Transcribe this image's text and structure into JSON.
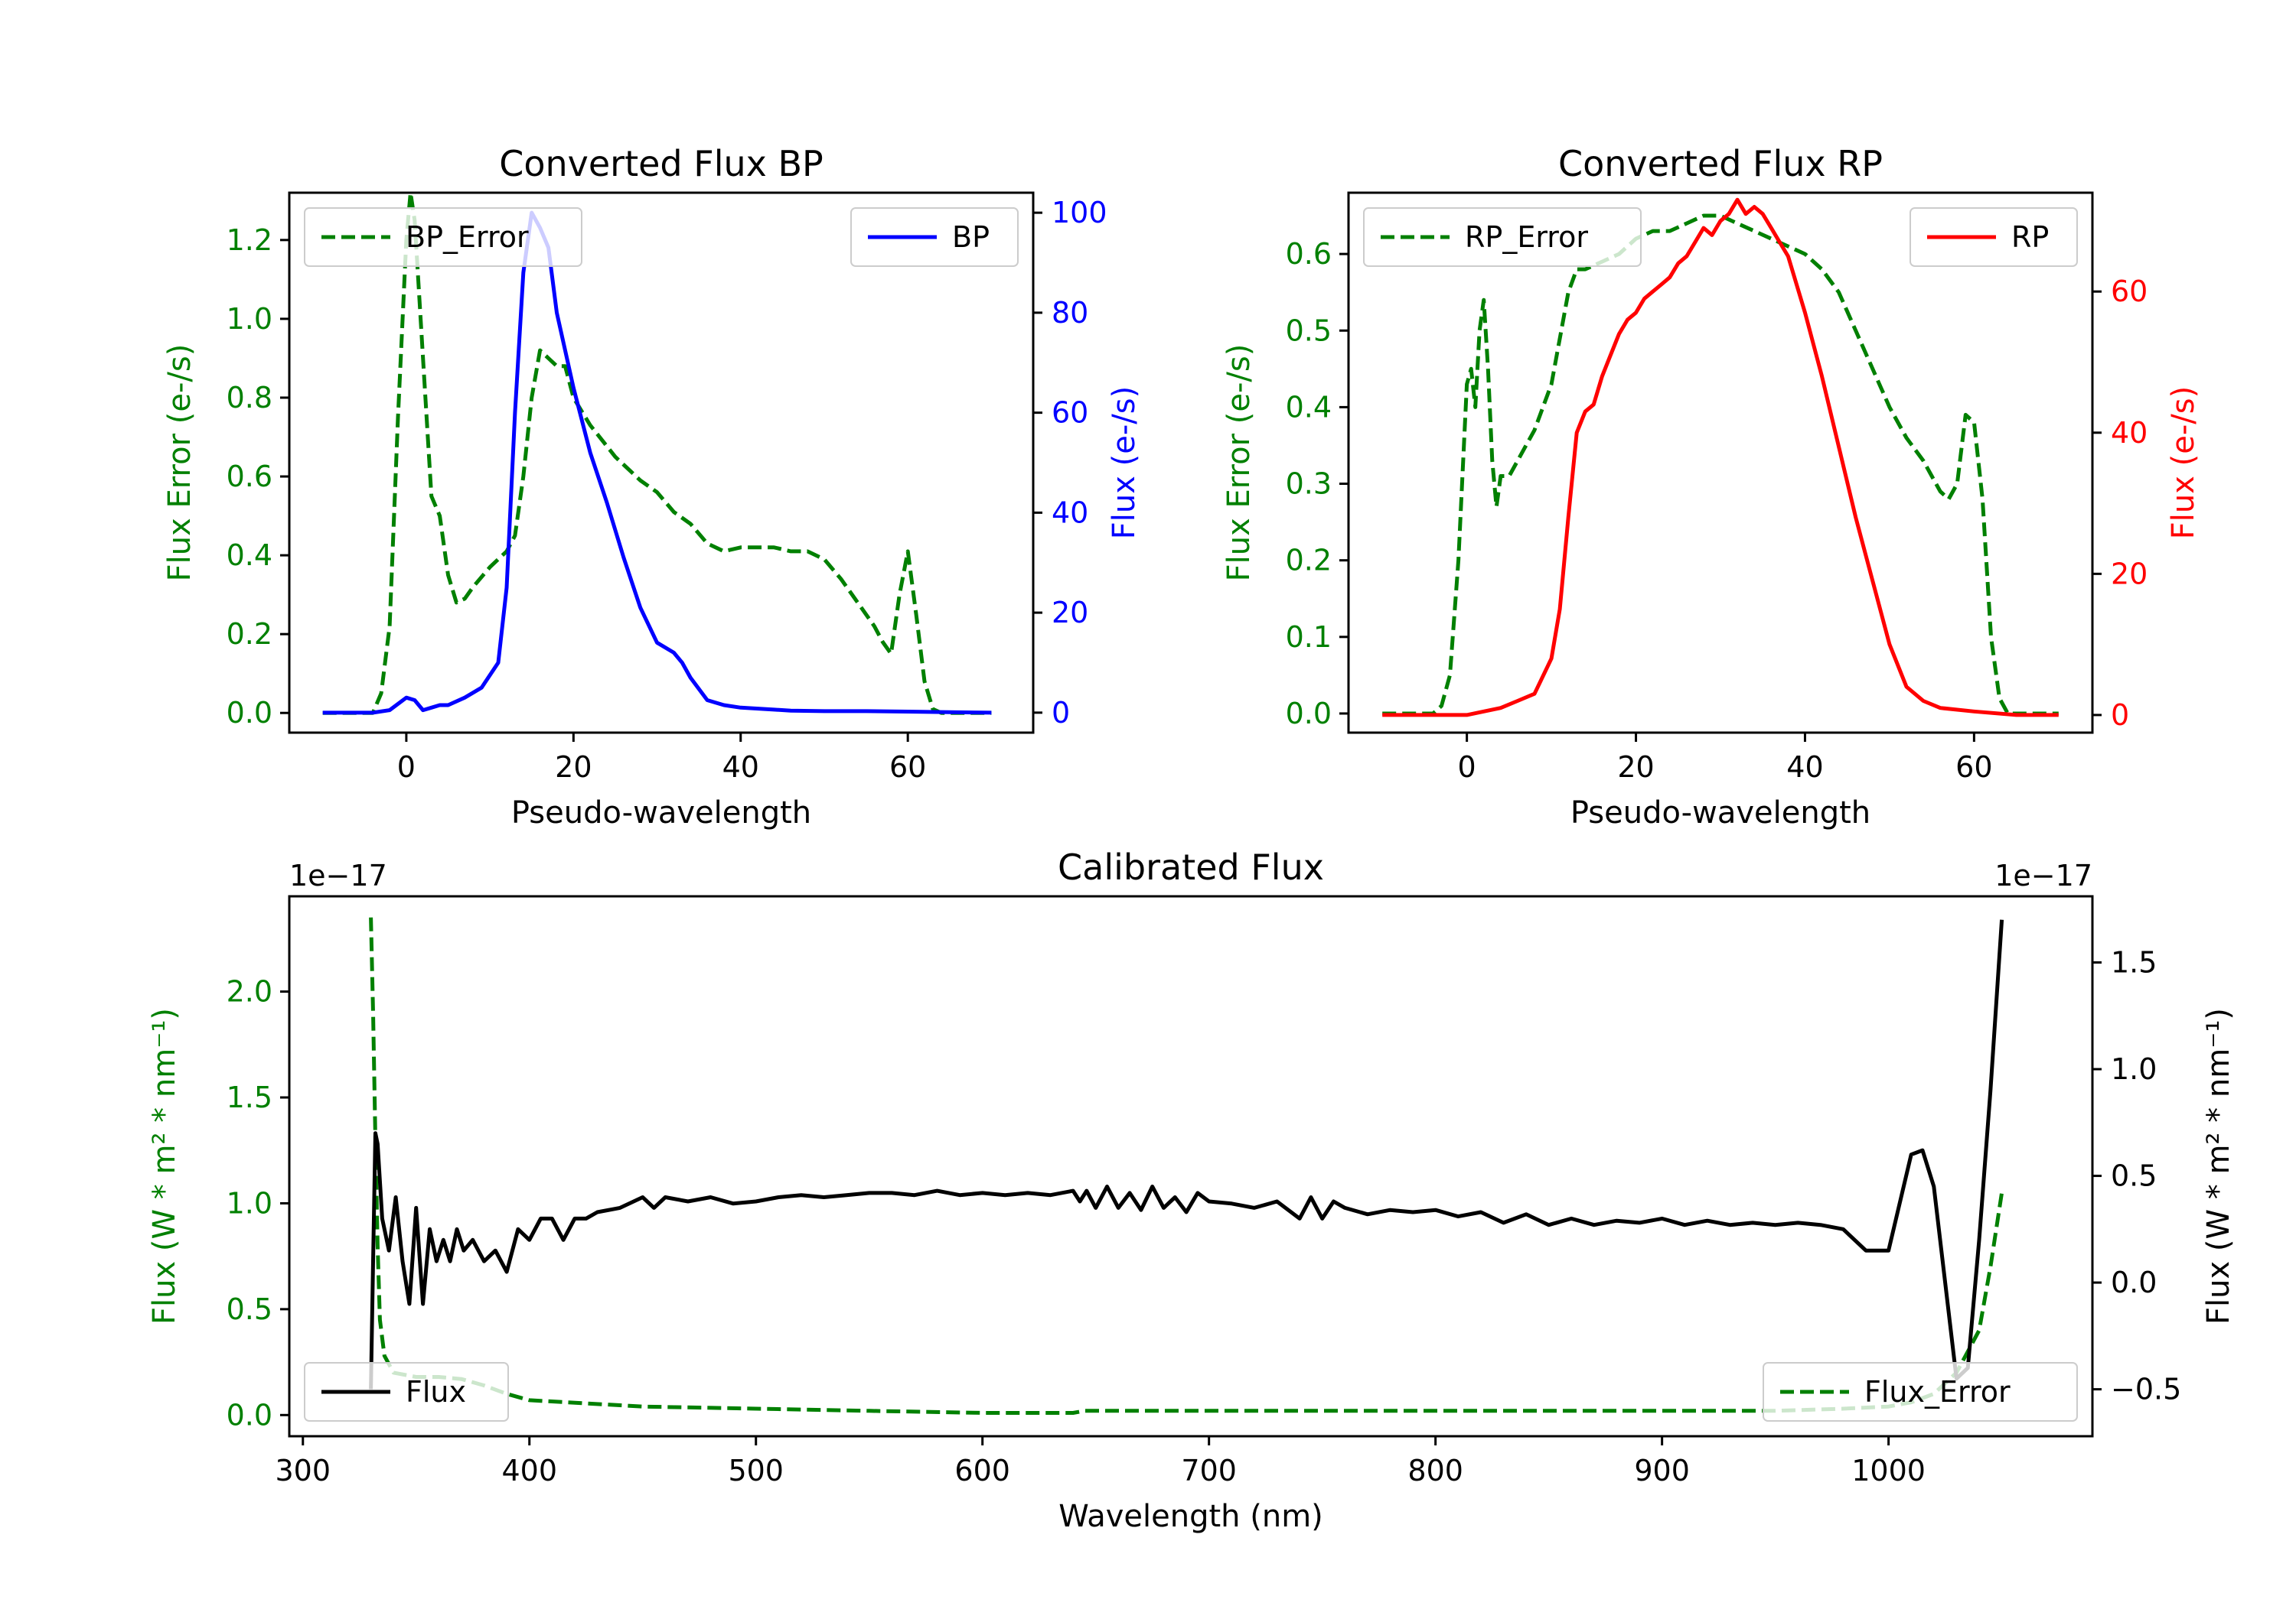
{
  "chart_data": [
    {
      "id": "bp",
      "type": "line",
      "title": "Converted Flux BP",
      "xlabel": "Pseudo-wavelength",
      "xlim": [
        -14,
        75
      ],
      "xticks": [
        0,
        20,
        40,
        60
      ],
      "left_axis": {
        "label": "Flux Error (e-/s)",
        "color": "#008000",
        "ylim": [
          -0.05,
          1.32
        ],
        "ticks": [
          0.0,
          0.2,
          0.4,
          0.6,
          0.8,
          1.0,
          1.2
        ],
        "tick_labels": [
          "0.0",
          "0.2",
          "0.4",
          "0.6",
          "0.8",
          "1.0",
          "1.2"
        ]
      },
      "right_axis": {
        "label": "Flux (e-/s)",
        "color": "#0000ff",
        "ylim": [
          -4,
          104
        ],
        "ticks": [
          0,
          20,
          40,
          60,
          80,
          100
        ],
        "tick_labels": [
          "0",
          "20",
          "40",
          "60",
          "80",
          "100"
        ]
      },
      "series": [
        {
          "name": "BP_Error",
          "axis": "left",
          "color": "#008000",
          "dashed": true,
          "x": [
            -10,
            -4,
            -3,
            -2,
            -1,
            0,
            0.5,
            1,
            2,
            3,
            4,
            5,
            6,
            7,
            8,
            10,
            12,
            13,
            14,
            15,
            16,
            17,
            18,
            19,
            20,
            22,
            25,
            28,
            30,
            32,
            34,
            36,
            38,
            40,
            42,
            44,
            46,
            48,
            50,
            52,
            54,
            56,
            57,
            58,
            59,
            60,
            61,
            62,
            63,
            64,
            65,
            70
          ],
          "values": [
            0.0,
            0.0,
            0.05,
            0.22,
            0.75,
            1.2,
            1.32,
            1.25,
            0.9,
            0.55,
            0.5,
            0.35,
            0.28,
            0.29,
            0.32,
            0.37,
            0.41,
            0.45,
            0.6,
            0.8,
            0.92,
            0.9,
            0.88,
            0.88,
            0.8,
            0.73,
            0.65,
            0.59,
            0.56,
            0.51,
            0.48,
            0.43,
            0.41,
            0.42,
            0.42,
            0.42,
            0.41,
            0.41,
            0.39,
            0.34,
            0.28,
            0.22,
            0.18,
            0.15,
            0.3,
            0.41,
            0.25,
            0.08,
            0.01,
            0.0,
            0.0,
            0.0
          ]
        },
        {
          "name": "BP",
          "axis": "right",
          "color": "#0000ff",
          "dashed": false,
          "x": [
            -10,
            -4,
            -2,
            0,
            1,
            2,
            3,
            4,
            5,
            7,
            9,
            11,
            12,
            13,
            14,
            15,
            16,
            17,
            18,
            20,
            22,
            24,
            26,
            28,
            30,
            32,
            33,
            34,
            36,
            38,
            40,
            44,
            46,
            50,
            55,
            60,
            65,
            70
          ],
          "values": [
            0,
            0,
            0.5,
            3,
            2.5,
            0.5,
            1,
            1.5,
            1.5,
            3,
            5,
            10,
            25,
            60,
            88,
            100,
            97,
            93,
            80,
            65,
            52,
            42,
            31,
            21,
            14,
            12,
            10,
            7,
            2.5,
            1.5,
            1,
            0.6,
            0.4,
            0.3,
            0.3,
            0.2,
            0.1,
            0
          ]
        }
      ],
      "legend": [
        {
          "label": "BP_Error",
          "position": "top-left"
        },
        {
          "label": "BP",
          "position": "top-right"
        }
      ]
    },
    {
      "id": "rp",
      "type": "line",
      "title": "Converted Flux RP",
      "xlabel": "Pseudo-wavelength",
      "xlim": [
        -14,
        74
      ],
      "xticks": [
        0,
        20,
        40,
        60
      ],
      "left_axis": {
        "label": "Flux Error (e-/s)",
        "color": "#008000",
        "ylim": [
          -0.025,
          0.68
        ],
        "ticks": [
          0.0,
          0.1,
          0.2,
          0.3,
          0.4,
          0.5,
          0.6
        ],
        "tick_labels": [
          "0.0",
          "0.1",
          "0.2",
          "0.3",
          "0.4",
          "0.5",
          "0.6"
        ]
      },
      "right_axis": {
        "label": "Flux (e-/s)",
        "color": "#ff0000",
        "ylim": [
          -2.5,
          74
        ],
        "ticks": [
          0,
          20,
          40,
          60
        ],
        "tick_labels": [
          "0",
          "20",
          "40",
          "60"
        ]
      },
      "series": [
        {
          "name": "RP_Error",
          "axis": "left",
          "color": "#008000",
          "dashed": true,
          "x": [
            -10,
            -4,
            -3,
            -2,
            -1,
            0,
            0.5,
            1,
            1.5,
            2,
            2.5,
            3,
            3.5,
            4,
            5,
            6,
            8,
            10,
            12,
            13,
            14,
            16,
            18,
            20,
            22,
            24,
            26,
            28,
            30,
            32,
            34,
            36,
            38,
            40,
            42,
            44,
            46,
            48,
            50,
            52,
            54,
            55,
            56,
            57,
            58,
            59,
            60,
            61,
            62,
            63,
            64,
            65,
            70
          ],
          "values": [
            0.0,
            0.0,
            0.01,
            0.05,
            0.2,
            0.43,
            0.45,
            0.4,
            0.5,
            0.54,
            0.45,
            0.33,
            0.27,
            0.31,
            0.31,
            0.33,
            0.37,
            0.43,
            0.55,
            0.58,
            0.58,
            0.59,
            0.6,
            0.62,
            0.63,
            0.63,
            0.64,
            0.65,
            0.65,
            0.64,
            0.63,
            0.62,
            0.61,
            0.6,
            0.58,
            0.55,
            0.5,
            0.45,
            0.4,
            0.36,
            0.33,
            0.31,
            0.29,
            0.28,
            0.3,
            0.39,
            0.38,
            0.28,
            0.1,
            0.02,
            0.0,
            0.0,
            0.0
          ]
        },
        {
          "name": "RP",
          "axis": "right",
          "color": "#ff0000",
          "dashed": false,
          "x": [
            -10,
            0,
            2,
            4,
            6,
            8,
            10,
            11,
            12,
            13,
            14,
            15,
            16,
            17,
            18,
            19,
            20,
            21,
            22,
            23,
            24,
            25,
            26,
            27,
            28,
            29,
            30,
            31,
            32,
            33,
            34,
            35,
            36,
            37,
            38,
            40,
            42,
            44,
            46,
            48,
            50,
            52,
            54,
            56,
            60,
            65,
            70
          ],
          "values": [
            0,
            0,
            0.5,
            1,
            2,
            3,
            8,
            15,
            28,
            40,
            43,
            44,
            48,
            51,
            54,
            56,
            57,
            59,
            60,
            61,
            62,
            64,
            65,
            67,
            69,
            68,
            70,
            71,
            73,
            71,
            72,
            71,
            69,
            67,
            65,
            57,
            48,
            38,
            28,
            19,
            10,
            4,
            2,
            1,
            0.5,
            0,
            0
          ]
        }
      ],
      "legend": [
        {
          "label": "RP_Error",
          "position": "top-left"
        },
        {
          "label": "RP",
          "position": "top-right"
        }
      ]
    },
    {
      "id": "cal",
      "type": "line",
      "title": "Calibrated Flux",
      "xlabel": "Wavelength (nm)",
      "xlim": [
        294,
        1090
      ],
      "xticks": [
        300,
        400,
        500,
        600,
        700,
        800,
        900,
        1000
      ],
      "left_axis": {
        "label": "Flux (W * m² * nm⁻¹)",
        "color": "#008000",
        "offset_text": "1e−17",
        "ylim": [
          -0.1,
          2.45
        ],
        "ticks": [
          0.0,
          0.5,
          1.0,
          1.5,
          2.0
        ],
        "tick_labels": [
          "0.0",
          "0.5",
          "1.0",
          "1.5",
          "2.0"
        ]
      },
      "right_axis": {
        "label": "Flux (W * m² * nm⁻¹)",
        "color": "#000000",
        "offset_text": "1e−17",
        "ylim": [
          -0.72,
          1.81
        ],
        "ticks": [
          -0.5,
          0.0,
          0.5,
          1.0,
          1.5
        ],
        "tick_labels": [
          "−0.5",
          "0.0",
          "0.5",
          "1.0",
          "1.5"
        ]
      },
      "series": [
        {
          "name": "Flux_Error",
          "axis": "left",
          "color": "#008000",
          "dashed": true,
          "x": [
            330,
            331,
            332,
            333,
            334,
            336,
            340,
            350,
            360,
            370,
            380,
            390,
            400,
            450,
            500,
            550,
            600,
            640,
            645,
            700,
            750,
            800,
            850,
            900,
            950,
            980,
            1000,
            1010,
            1020,
            1030,
            1040,
            1045,
            1050
          ],
          "values": [
            2.35,
            1.9,
            1.3,
            0.8,
            0.45,
            0.28,
            0.2,
            0.18,
            0.18,
            0.17,
            0.14,
            0.1,
            0.07,
            0.04,
            0.03,
            0.02,
            0.01,
            0.01,
            0.02,
            0.02,
            0.02,
            0.02,
            0.02,
            0.02,
            0.02,
            0.03,
            0.04,
            0.06,
            0.1,
            0.2,
            0.4,
            0.7,
            1.05
          ]
        },
        {
          "name": "Flux",
          "axis": "right",
          "color": "#000000",
          "dashed": false,
          "x": [
            330,
            331,
            332,
            333,
            335,
            338,
            341,
            344,
            347,
            350,
            353,
            356,
            359,
            362,
            365,
            368,
            371,
            375,
            380,
            385,
            390,
            395,
            400,
            405,
            410,
            415,
            420,
            425,
            430,
            440,
            450,
            455,
            460,
            470,
            480,
            490,
            500,
            510,
            520,
            530,
            540,
            550,
            560,
            570,
            580,
            590,
            600,
            610,
            620,
            630,
            640,
            643,
            646,
            650,
            655,
            660,
            665,
            670,
            675,
            680,
            685,
            690,
            695,
            700,
            710,
            720,
            730,
            740,
            745,
            750,
            755,
            760,
            770,
            780,
            790,
            800,
            810,
            820,
            830,
            840,
            850,
            860,
            870,
            880,
            890,
            900,
            910,
            920,
            930,
            940,
            950,
            960,
            970,
            980,
            990,
            1000,
            1010,
            1015,
            1020,
            1025,
            1030,
            1035,
            1040,
            1045,
            1050
          ],
          "values": [
            -0.5,
            0.1,
            0.7,
            0.65,
            0.3,
            0.15,
            0.4,
            0.1,
            -0.1,
            0.35,
            -0.1,
            0.25,
            0.1,
            0.2,
            0.1,
            0.25,
            0.15,
            0.2,
            0.1,
            0.15,
            0.05,
            0.25,
            0.2,
            0.3,
            0.3,
            0.2,
            0.3,
            0.3,
            0.33,
            0.35,
            0.4,
            0.35,
            0.4,
            0.38,
            0.4,
            0.37,
            0.38,
            0.4,
            0.41,
            0.4,
            0.41,
            0.42,
            0.42,
            0.41,
            0.43,
            0.41,
            0.42,
            0.41,
            0.42,
            0.41,
            0.43,
            0.38,
            0.43,
            0.35,
            0.45,
            0.35,
            0.42,
            0.34,
            0.45,
            0.35,
            0.4,
            0.33,
            0.42,
            0.38,
            0.37,
            0.35,
            0.38,
            0.3,
            0.4,
            0.3,
            0.38,
            0.35,
            0.32,
            0.34,
            0.33,
            0.34,
            0.31,
            0.33,
            0.28,
            0.32,
            0.27,
            0.3,
            0.27,
            0.29,
            0.28,
            0.3,
            0.27,
            0.29,
            0.27,
            0.28,
            0.27,
            0.28,
            0.27,
            0.25,
            0.15,
            0.15,
            0.6,
            0.62,
            0.45,
            0.0,
            -0.45,
            -0.4,
            0.2,
            0.9,
            1.7
          ]
        }
      ],
      "legend": [
        {
          "label": "Flux",
          "position": "lower-left"
        },
        {
          "label": "Flux_Error",
          "position": "lower-right"
        }
      ]
    }
  ]
}
